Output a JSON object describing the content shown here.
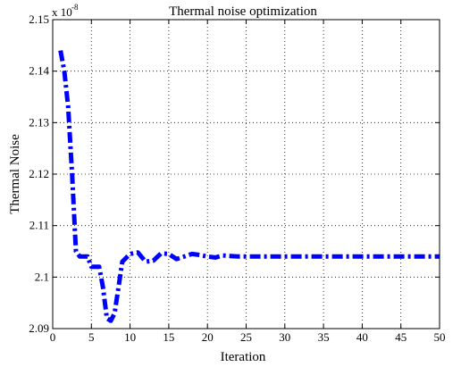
{
  "chart_data": {
    "type": "line",
    "title": "Thermal noise optimization",
    "xlabel": "Iteration",
    "ylabel": "Thermal Noise",
    "y_exponent_label": "x 10",
    "y_exponent_power": "-8",
    "xlim": [
      0,
      50
    ],
    "ylim": [
      2.09,
      2.15
    ],
    "x_ticks": [
      0,
      5,
      10,
      15,
      20,
      25,
      30,
      35,
      40,
      45,
      50
    ],
    "x_tick_labels": [
      "0",
      "5",
      "10",
      "15",
      "20",
      "25",
      "30",
      "35",
      "40",
      "45",
      "50"
    ],
    "y_ticks": [
      2.09,
      2.1,
      2.11,
      2.12,
      2.13,
      2.14,
      2.15
    ],
    "y_tick_labels": [
      "2.09",
      "2.1",
      "2.11",
      "2.12",
      "2.13",
      "2.14",
      "2.15"
    ],
    "grid": true,
    "line_style": "dash-dot",
    "series": [
      {
        "color": "#0000ff",
        "x": [
          1,
          1.5,
          2,
          2.5,
          3,
          3.5,
          4,
          4.5,
          5,
          5.5,
          6,
          6.5,
          7,
          7.5,
          8,
          8.5,
          9,
          10,
          11,
          12,
          13,
          14,
          15,
          16,
          17,
          18,
          19,
          20,
          21,
          22,
          23,
          24,
          25,
          26,
          27,
          28,
          29,
          30,
          31,
          32,
          33,
          34,
          35,
          36,
          37,
          38,
          39,
          40,
          41,
          42,
          43,
          44,
          45,
          46,
          47,
          48,
          49,
          50
        ],
        "y": [
          2.144,
          2.14,
          2.133,
          2.12,
          2.105,
          2.104,
          2.104,
          2.104,
          2.102,
          2.102,
          2.102,
          2.098,
          2.092,
          2.0915,
          2.093,
          2.098,
          2.103,
          2.1045,
          2.1048,
          2.103,
          2.1032,
          2.1046,
          2.1045,
          2.1035,
          2.104,
          2.1045,
          2.1043,
          2.104,
          2.1038,
          2.1042,
          2.1041,
          2.104,
          2.104,
          2.104,
          2.104,
          2.104,
          2.104,
          2.104,
          2.104,
          2.104,
          2.104,
          2.104,
          2.104,
          2.104,
          2.104,
          2.104,
          2.104,
          2.104,
          2.104,
          2.104,
          2.104,
          2.104,
          2.104,
          2.104,
          2.104,
          2.104,
          2.104,
          2.104
        ]
      }
    ]
  }
}
